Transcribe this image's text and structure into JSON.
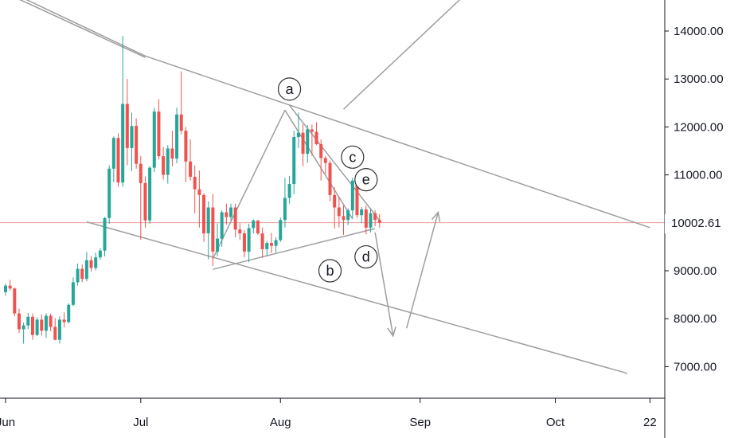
{
  "chart_data": {
    "type": "candlestick",
    "title": "",
    "xlabel": "",
    "ylabel": "",
    "ylim": [
      6400,
      14600
    ],
    "y_ticks": [
      {
        "value": 7000,
        "label": "7000.00"
      },
      {
        "value": 8000,
        "label": "8000.00"
      },
      {
        "value": 9000,
        "label": "9000.00"
      },
      {
        "value": 10000,
        "label": "10000.00"
      },
      {
        "value": 11000,
        "label": "11000.00"
      },
      {
        "value": 12000,
        "label": "12000.00"
      },
      {
        "value": 13000,
        "label": "13000.00"
      },
      {
        "value": 14000,
        "label": "14000.00"
      }
    ],
    "x_ticks": [
      {
        "day": 0,
        "label": "Jun"
      },
      {
        "day": 30,
        "label": "Jul"
      },
      {
        "day": 61,
        "label": "Aug"
      },
      {
        "day": 92,
        "label": "Sep"
      },
      {
        "day": 122,
        "label": "Oct"
      },
      {
        "day": 143,
        "label": "22"
      }
    ],
    "x_range_days": [
      0,
      143
    ],
    "current_price": 10002.61,
    "current_price_label": "10002.61",
    "colors": {
      "up": "#26a69a",
      "down": "#ef5350",
      "line": "#9e9e9e",
      "price_line": "#ef9a9a"
    },
    "candles": [
      [
        8555,
        8730,
        8480,
        8690
      ],
      [
        8690,
        8810,
        8580,
        8630
      ],
      [
        8630,
        8650,
        8050,
        8110
      ],
      [
        8110,
        8210,
        7700,
        7780
      ],
      [
        7780,
        7920,
        7480,
        7860
      ],
      [
        7860,
        8120,
        7780,
        8040
      ],
      [
        8040,
        8110,
        7560,
        7660
      ],
      [
        7660,
        8030,
        7640,
        7980
      ],
      [
        7980,
        8090,
        7650,
        7750
      ],
      [
        7750,
        8110,
        7600,
        8060
      ],
      [
        8060,
        8110,
        7740,
        7830
      ],
      [
        7830,
        8010,
        7550,
        7560
      ],
      [
        7560,
        8050,
        7480,
        7980
      ],
      [
        7980,
        8130,
        7820,
        7930
      ],
      [
        7930,
        8320,
        7900,
        8290
      ],
      [
        8290,
        8860,
        8260,
        8760
      ],
      [
        8760,
        9150,
        8690,
        9040
      ],
      [
        9040,
        9130,
        8760,
        8830
      ],
      [
        8830,
        9390,
        8780,
        9220
      ],
      [
        9220,
        9310,
        8980,
        9060
      ],
      [
        9060,
        9380,
        9010,
        9280
      ],
      [
        9280,
        9470,
        9230,
        9420
      ],
      [
        9420,
        10120,
        9300,
        10100
      ],
      [
        10100,
        11200,
        9980,
        11130
      ],
      [
        11130,
        11800,
        10850,
        11770
      ],
      [
        11770,
        11870,
        10750,
        10840
      ],
      [
        10840,
        13900,
        10750,
        12480
      ],
      [
        12480,
        13000,
        11200,
        11560
      ],
      [
        11560,
        12300,
        11080,
        12020
      ],
      [
        12020,
        12180,
        11130,
        11230
      ],
      [
        11230,
        11390,
        9650,
        10830
      ],
      [
        10830,
        10970,
        9900,
        10050
      ],
      [
        10050,
        11180,
        9980,
        11150
      ],
      [
        11150,
        12400,
        11060,
        12320
      ],
      [
        12320,
        12580,
        11320,
        11390
      ],
      [
        11390,
        11580,
        10900,
        11000
      ],
      [
        11000,
        11620,
        10820,
        11550
      ],
      [
        11550,
        11920,
        11180,
        11340
      ],
      [
        11340,
        12400,
        11240,
        12260
      ],
      [
        12260,
        13160,
        11850,
        11920
      ],
      [
        11920,
        12000,
        10850,
        11280
      ],
      [
        11280,
        11740,
        10880,
        10960
      ],
      [
        10960,
        11200,
        10200,
        10700
      ],
      [
        10700,
        11090,
        9900,
        10580
      ],
      [
        10580,
        10620,
        9600,
        9780
      ],
      [
        9780,
        10450,
        9240,
        10320
      ],
      [
        10320,
        10600,
        9100,
        9400
      ],
      [
        9400,
        9990,
        9300,
        9670
      ],
      [
        9670,
        10260,
        9500,
        10220
      ],
      [
        10220,
        10400,
        9960,
        10120
      ],
      [
        10120,
        10400,
        10050,
        10320
      ],
      [
        10320,
        10400,
        9700,
        9860
      ],
      [
        9860,
        9990,
        9640,
        9780
      ],
      [
        9780,
        9850,
        9280,
        9400
      ],
      [
        9400,
        9980,
        9180,
        9890
      ],
      [
        9890,
        10070,
        9780,
        10050
      ],
      [
        10050,
        10050,
        9750,
        9780
      ],
      [
        9780,
        9900,
        9270,
        9450
      ],
      [
        9450,
        9620,
        9300,
        9580
      ],
      [
        9580,
        9790,
        9370,
        9520
      ],
      [
        9520,
        9700,
        9380,
        9640
      ],
      [
        9640,
        10110,
        9600,
        10060
      ],
      [
        10060,
        10940,
        9900,
        10520
      ],
      [
        10520,
        10980,
        10400,
        10810
      ],
      [
        10810,
        11920,
        10600,
        11790
      ],
      [
        11790,
        12300,
        11560,
        11880
      ],
      [
        11880,
        12060,
        11180,
        11440
      ],
      [
        11440,
        12040,
        11250,
        11950
      ],
      [
        11950,
        12050,
        11400,
        11900
      ],
      [
        11900,
        12100,
        11620,
        11640
      ],
      [
        11640,
        11740,
        10880,
        11350
      ],
      [
        11350,
        11390,
        11020,
        11250
      ],
      [
        11250,
        11300,
        10450,
        10580
      ],
      [
        10580,
        10740,
        9880,
        10320
      ],
      [
        10320,
        10540,
        9900,
        10140
      ],
      [
        10140,
        10360,
        9750,
        10060
      ],
      [
        10060,
        10300,
        9950,
        10260
      ],
      [
        10260,
        10940,
        10100,
        10880
      ],
      [
        10880,
        10960,
        10100,
        10160
      ],
      [
        10160,
        10330,
        9990,
        10280
      ],
      [
        10280,
        10360,
        9760,
        9900
      ],
      [
        9900,
        10300,
        9800,
        10200
      ],
      [
        10200,
        10260,
        9930,
        10060
      ],
      [
        10060,
        10180,
        9900,
        10000
      ]
    ],
    "lines": [
      [
        -2,
        14880,
        31,
        13450
      ],
      [
        -2,
        14950,
        31,
        13480
      ],
      [
        31,
        13480,
        143,
        9900
      ],
      [
        18,
        10020,
        138,
        6860
      ],
      [
        46,
        9030,
        82,
        9880
      ],
      [
        46,
        9250,
        62,
        12350
      ],
      [
        62,
        12350,
        77,
        10080
      ],
      [
        63,
        12450,
        83,
        10050
      ],
      [
        75,
        12370,
        103,
        14850
      ]
    ],
    "arrows": [
      [
        82,
        9800,
        86,
        7640
      ],
      [
        89,
        7800,
        96,
        10220
      ]
    ],
    "wave_labels": [
      {
        "text": "a",
        "day": 63,
        "price": 12790
      },
      {
        "text": "b",
        "day": 72,
        "price": 9000
      },
      {
        "text": "c",
        "day": 77,
        "price": 11370
      },
      {
        "text": "d",
        "day": 80,
        "price": 9290
      },
      {
        "text": "e",
        "day": 80,
        "price": 10900
      }
    ]
  }
}
